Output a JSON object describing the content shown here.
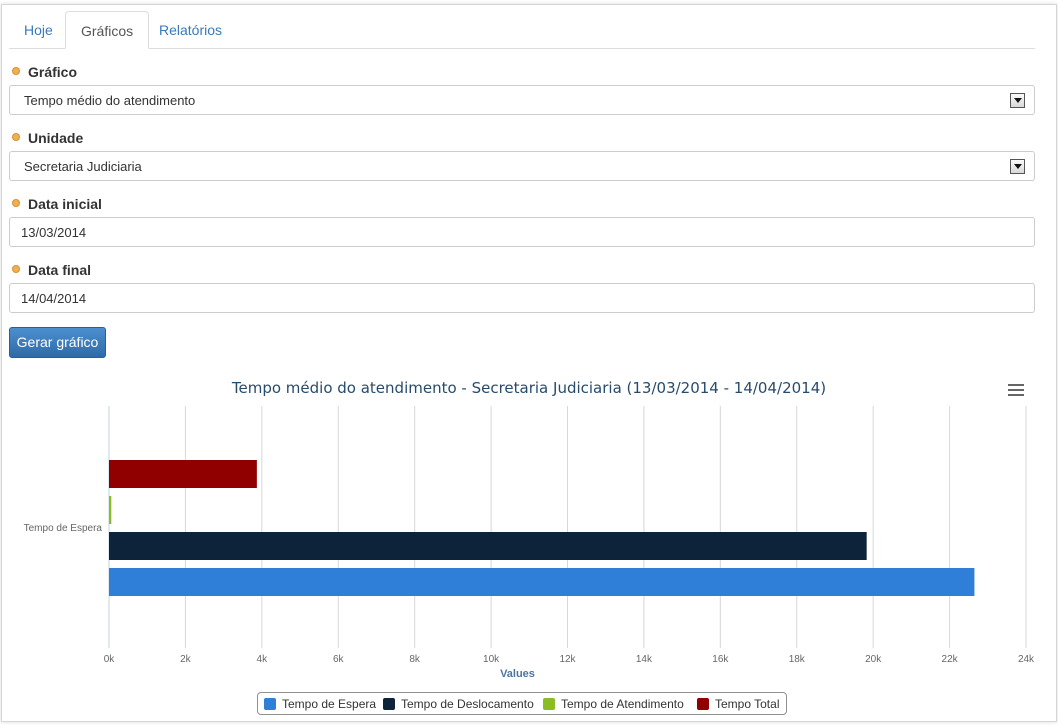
{
  "tabs": [
    {
      "label": "Hoje",
      "active": false
    },
    {
      "label": "Gráficos",
      "active": true
    },
    {
      "label": "Relatórios",
      "active": false
    }
  ],
  "form": {
    "grafico": {
      "label": "Gráfico",
      "value": "Tempo médio do atendimento"
    },
    "unidade": {
      "label": "Unidade",
      "value": "Secretaria Judiciaria"
    },
    "data_inicial": {
      "label": "Data inicial",
      "value": "13/03/2014"
    },
    "data_final": {
      "label": "Data final",
      "value": "14/04/2014"
    },
    "submit_label": "Gerar gráfico"
  },
  "chart_data": {
    "type": "bar",
    "orientation": "horizontal",
    "title": "Tempo médio do atendimento - Secretaria Judiciaria (13/03/2014 - 14/04/2014)",
    "categories": [
      "Tempo de Espera"
    ],
    "xlabel": "Values",
    "xlim": [
      0,
      24000
    ],
    "ticks": [
      "0k",
      "2k",
      "4k",
      "6k",
      "8k",
      "10k",
      "12k",
      "14k",
      "16k",
      "18k",
      "20k",
      "22k",
      "24k"
    ],
    "grid": true,
    "legend_position": "bottom",
    "series": [
      {
        "name": "Tempo de Espera",
        "values": [
          22650
        ],
        "color": "#2f7ed8"
      },
      {
        "name": "Tempo de Deslocamento",
        "values": [
          19830
        ],
        "color": "#0d233a"
      },
      {
        "name": "Tempo de Atendimento",
        "values": [
          60
        ],
        "color": "#8bbc21"
      },
      {
        "name": "Tempo Total",
        "values": [
          3870
        ],
        "color": "#910000"
      }
    ]
  },
  "icons": {
    "menu": "hamburger-menu-icon",
    "dropdown": "chevron-down-icon",
    "bullet": "bullet-icon"
  }
}
